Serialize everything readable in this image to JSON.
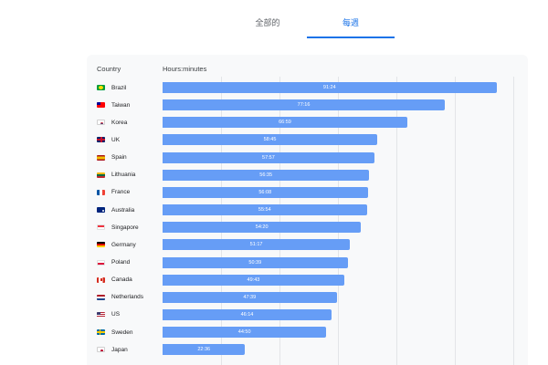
{
  "tabs": {
    "all_label": "全部的",
    "weekly_label": "每週"
  },
  "colors": {
    "bar": "#669df6",
    "active_tab": "#1a73e8"
  },
  "chart_data": {
    "type": "bar",
    "orientation": "horizontal",
    "column_headers": [
      "Country",
      "Hours:minutes"
    ],
    "xlim_minutes": [
      0,
      5760
    ],
    "grid": true,
    "rows": [
      {
        "country": "Brazil",
        "flag": "flag-brazil-icon",
        "label": "91:24",
        "minutes": 5484
      },
      {
        "country": "Taiwan",
        "flag": "flag-taiwan-icon",
        "label": "77:16",
        "minutes": 4636
      },
      {
        "country": "Korea",
        "flag": "flag-korea-icon",
        "label": "66:59",
        "minutes": 4019
      },
      {
        "country": "UK",
        "flag": "flag-uk-icon",
        "label": "58:45",
        "minutes": 3525
      },
      {
        "country": "Spain",
        "flag": "flag-spain-icon",
        "label": "57:57",
        "minutes": 3477
      },
      {
        "country": "Lithuania",
        "flag": "flag-lithuania-icon",
        "label": "56:35",
        "minutes": 3395
      },
      {
        "country": "France",
        "flag": "flag-france-icon",
        "label": "56:08",
        "minutes": 3368
      },
      {
        "country": "Australia",
        "flag": "flag-australia-icon",
        "label": "55:54",
        "minutes": 3354
      },
      {
        "country": "Singapore",
        "flag": "flag-singapore-icon",
        "label": "54:20",
        "minutes": 3260
      },
      {
        "country": "Germany",
        "flag": "flag-germany-icon",
        "label": "51:17",
        "minutes": 3077
      },
      {
        "country": "Poland",
        "flag": "flag-poland-icon",
        "label": "50:39",
        "minutes": 3039
      },
      {
        "country": "Canada",
        "flag": "flag-canada-icon",
        "label": "49:43",
        "minutes": 2983
      },
      {
        "country": "Netherlands",
        "flag": "flag-netherlands-icon",
        "label": "47:39",
        "minutes": 2859
      },
      {
        "country": "US",
        "flag": "flag-us-icon",
        "label": "46:14",
        "minutes": 2774
      },
      {
        "country": "Sweden",
        "flag": "flag-sweden-icon",
        "label": "44:50",
        "minutes": 2690
      },
      {
        "country": "Japan",
        "flag": "flag-japan-icon",
        "label": "22:36",
        "minutes": 1356
      }
    ]
  }
}
